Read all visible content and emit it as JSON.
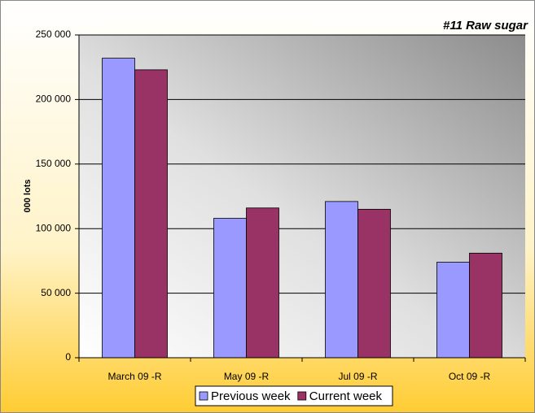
{
  "chart_data": {
    "type": "bar",
    "title": "#11 Raw sugar",
    "y_label": "000 lots",
    "categories": [
      "March 09 -R",
      "May 09 -R",
      "Jul 09 -R",
      "Oct 09 -R"
    ],
    "series": [
      {
        "name": "Previous week",
        "color": "#9999ff",
        "values": [
          232000,
          108000,
          121000,
          74000
        ]
      },
      {
        "name": "Current week",
        "color": "#993366",
        "values": [
          223000,
          116000,
          115000,
          81000
        ]
      }
    ],
    "ylim": [
      0,
      250000
    ],
    "yticks": [
      0,
      {
        "value": 50000,
        "label": "50 000"
      },
      {
        "value": 100000,
        "label": "100 000"
      },
      {
        "value": 150000,
        "label": "150 000"
      },
      {
        "value": 200000,
        "label": "200 000"
      },
      {
        "value": 250000,
        "label": "250 000"
      }
    ],
    "grid": true,
    "legend": "bottom"
  }
}
